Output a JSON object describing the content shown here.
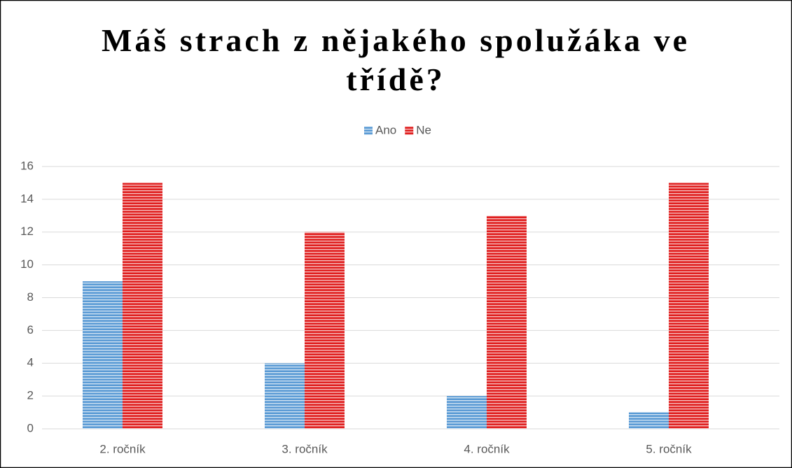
{
  "chart_data": {
    "type": "bar",
    "title": "Máš strach z nějakého spolužáka ve třídě?",
    "categories": [
      "2. ročník",
      "3. ročník",
      "4. ročník",
      "5. ročník"
    ],
    "series": [
      {
        "name": "Ano",
        "color": "#5b9bd5",
        "values": [
          9,
          4,
          2,
          1
        ]
      },
      {
        "name": "Ne",
        "color": "#e02020",
        "values": [
          15,
          12,
          13,
          15
        ]
      }
    ],
    "ylim": [
      0,
      16
    ],
    "yticks": [
      0,
      2,
      4,
      6,
      8,
      10,
      12,
      14,
      16
    ],
    "grid": true,
    "legend": "top"
  }
}
